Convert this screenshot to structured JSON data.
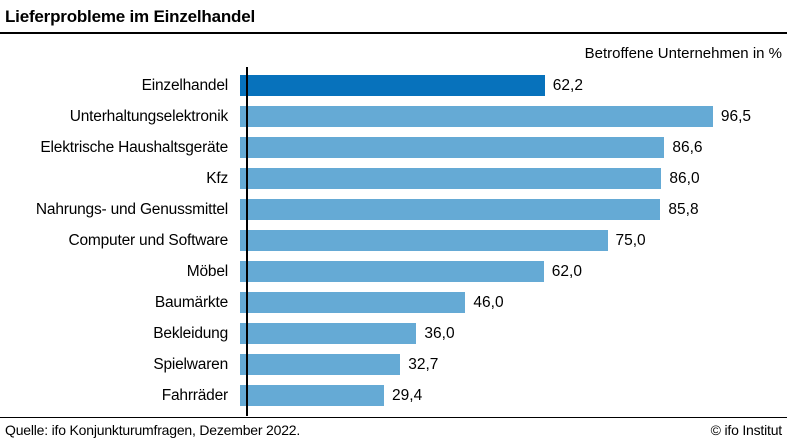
{
  "header": {
    "title": "Lieferprobleme im Einzelhandel"
  },
  "subtitle": "Betroffene Unternehmen in %",
  "footer": {
    "source": "Quelle: ifo Konjunkturumfragen, Dezember 2022.",
    "copyright": "© ifo Institut"
  },
  "colors": {
    "highlight_bar": "#0772bc",
    "default_bar": "#65aad5",
    "rule": "#000000"
  },
  "chart_data": {
    "type": "bar",
    "orientation": "horizontal",
    "title": "Lieferprobleme im Einzelhandel",
    "xlabel": "Betroffene Unternehmen in %",
    "xlim": [
      0,
      100
    ],
    "grid": false,
    "legend": false,
    "highlight_index": 0,
    "categories": [
      "Einzelhandel",
      "Unterhaltungselektronik",
      "Elektrische Haushaltsgeräte",
      "Kfz",
      "Nahrungs- und Genussmittel",
      "Computer und Software",
      "Möbel",
      "Baumärkte",
      "Bekleidung",
      "Spielwaren",
      "Fahrräder"
    ],
    "values": [
      62.2,
      96.5,
      86.6,
      86.0,
      85.8,
      75.0,
      62.0,
      46.0,
      36.0,
      32.7,
      29.4
    ],
    "display_values": [
      "62,2",
      "96,5",
      "86,6",
      "86,0",
      "85,8",
      "75,0",
      "62,0",
      "46,0",
      "36,0",
      "32,7",
      "29,4"
    ]
  }
}
